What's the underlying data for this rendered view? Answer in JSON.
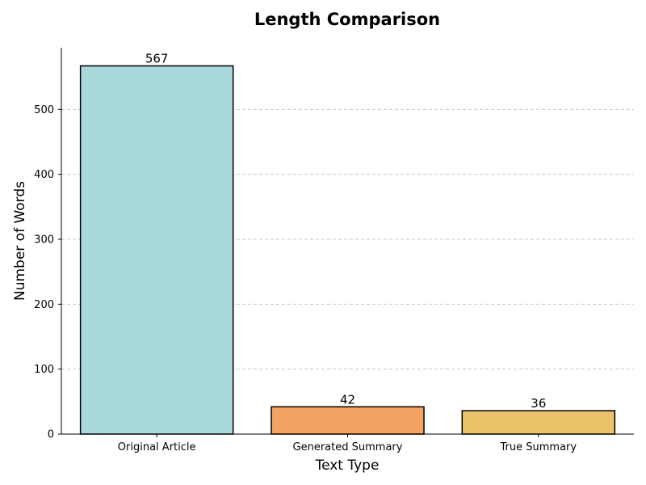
{
  "chart_data": {
    "type": "bar",
    "title": "Length Comparison",
    "xlabel": "Text Type",
    "ylabel": "Number of Words",
    "categories": [
      "Original Article",
      "Generated Summary",
      "True Summary"
    ],
    "values": [
      567,
      42,
      36
    ],
    "data_labels": [
      "567",
      "42",
      "36"
    ],
    "colors": [
      "#a8d8dc",
      "#f4a261",
      "#e9c46a"
    ],
    "edge_color": "#000000",
    "ylim": [
      0,
      595
    ],
    "yticks": [
      0,
      100,
      200,
      300,
      400,
      500
    ],
    "ytick_labels": [
      "0",
      "100",
      "200",
      "300",
      "400",
      "500"
    ],
    "grid": "y-dashed",
    "gridline_color": "#c8c8c8",
    "spines": "left-bottom"
  }
}
